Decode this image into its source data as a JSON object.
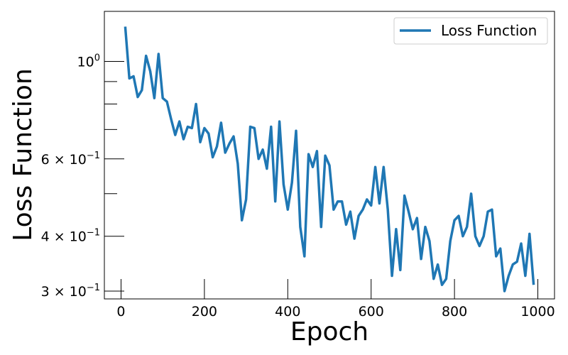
{
  "chart_data": {
    "type": "line",
    "xlabel": "Epoch",
    "ylabel": "Loss Function",
    "xscale": "linear",
    "yscale": "log",
    "xlim": [
      -40,
      1040
    ],
    "ylim": [
      0.288,
      1.3
    ],
    "grid": false,
    "legend_position": "top-right",
    "x_ticks": [
      0,
      200,
      400,
      600,
      800,
      1000
    ],
    "y_ticks": [
      {
        "value": 1.0,
        "label_base": "10",
        "label_exp": "0",
        "label_coef": ""
      },
      {
        "value": 0.6,
        "label_coef": "6 × ",
        "label_base": "10",
        "label_exp": "−1"
      },
      {
        "value": 0.4,
        "label_coef": "4 × ",
        "label_base": "10",
        "label_exp": "−1"
      },
      {
        "value": 0.3,
        "label_coef": "3 × ",
        "label_base": "10",
        "label_exp": "−1"
      }
    ],
    "y_minor_ticks": [
      0.5,
      0.7,
      0.8,
      0.9
    ],
    "series": [
      {
        "name": "Loss Function",
        "color": "#1f77b4",
        "x": [
          10,
          20,
          30,
          40,
          50,
          60,
          70,
          80,
          90,
          100,
          110,
          120,
          130,
          140,
          150,
          160,
          170,
          180,
          190,
          200,
          210,
          220,
          230,
          240,
          250,
          260,
          270,
          280,
          290,
          300,
          310,
          320,
          330,
          340,
          350,
          360,
          370,
          380,
          390,
          400,
          410,
          420,
          430,
          440,
          450,
          460,
          470,
          480,
          490,
          500,
          510,
          520,
          530,
          540,
          550,
          560,
          570,
          580,
          590,
          600,
          610,
          620,
          630,
          640,
          650,
          660,
          670,
          680,
          690,
          700,
          710,
          720,
          730,
          740,
          750,
          760,
          770,
          780,
          790,
          800,
          810,
          820,
          830,
          840,
          850,
          860,
          870,
          880,
          890,
          900,
          910,
          920,
          930,
          940,
          950,
          960,
          970,
          980,
          990
        ],
        "y": [
          1.2,
          0.915,
          0.925,
          0.83,
          0.86,
          1.03,
          0.95,
          0.825,
          1.04,
          0.825,
          0.81,
          0.74,
          0.68,
          0.73,
          0.665,
          0.71,
          0.705,
          0.8,
          0.655,
          0.705,
          0.685,
          0.605,
          0.64,
          0.725,
          0.62,
          0.65,
          0.675,
          0.585,
          0.435,
          0.485,
          0.71,
          0.705,
          0.6,
          0.63,
          0.57,
          0.71,
          0.48,
          0.73,
          0.525,
          0.46,
          0.53,
          0.695,
          0.42,
          0.36,
          0.615,
          0.575,
          0.625,
          0.42,
          0.61,
          0.58,
          0.46,
          0.48,
          0.48,
          0.425,
          0.455,
          0.395,
          0.445,
          0.46,
          0.485,
          0.47,
          0.575,
          0.475,
          0.575,
          0.46,
          0.325,
          0.415,
          0.335,
          0.495,
          0.455,
          0.415,
          0.44,
          0.355,
          0.42,
          0.39,
          0.32,
          0.345,
          0.31,
          0.32,
          0.39,
          0.435,
          0.445,
          0.4,
          0.42,
          0.5,
          0.4,
          0.38,
          0.4,
          0.455,
          0.46,
          0.36,
          0.375,
          0.3,
          0.325,
          0.345,
          0.35,
          0.385,
          0.325,
          0.405,
          0.31
        ]
      }
    ]
  }
}
